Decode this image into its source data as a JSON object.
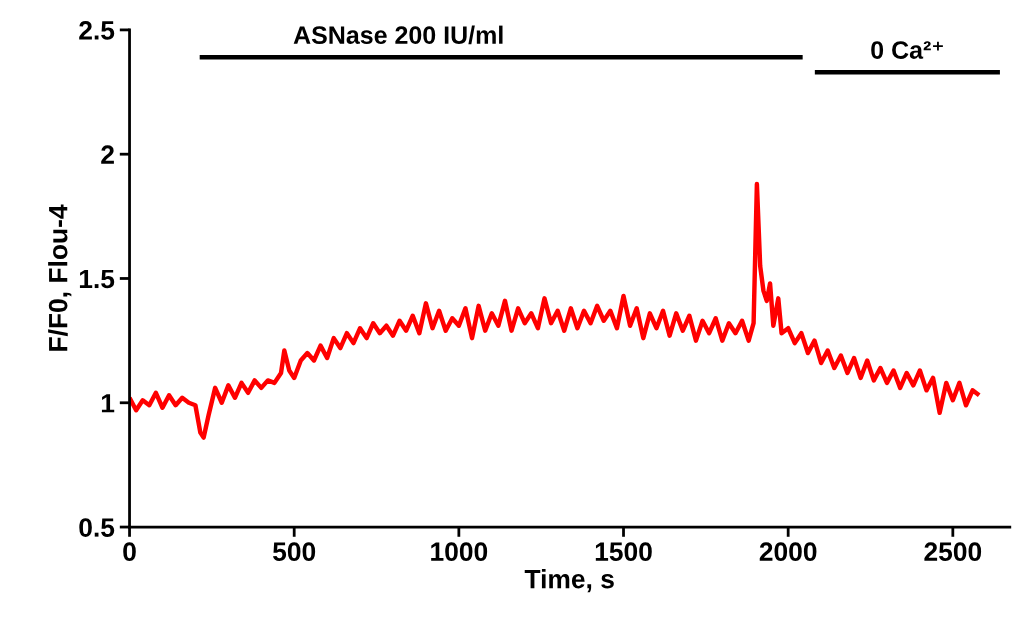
{
  "chart_data": {
    "type": "line",
    "xlabel": "Time, s",
    "ylabel": "F/F0, Flou-4",
    "xlim": [
      0,
      2673
    ],
    "xticks": [
      0,
      500,
      1000,
      1500,
      2000,
      2500
    ],
    "ylim": [
      0.5,
      2.5
    ],
    "yticks": [
      0.5,
      1,
      1.5,
      2,
      2.5
    ],
    "grid": false,
    "legend": false,
    "marker": "none",
    "line_style": "solid",
    "annotations": [
      "ASNase 200 IU/ml",
      "0 Ca²⁺"
    ],
    "series": [
      {
        "color": "#000000",
        "x": [
          213,
          2044
        ],
        "values": [
          2.39,
          2.39
        ]
      },
      {
        "color": "#000000",
        "x": [
          2081,
          2643
        ],
        "values": [
          2.33,
          2.33
        ]
      },
      {
        "color": "#ff0000",
        "x": [
          0,
          20,
          40,
          60,
          80,
          100,
          120,
          140,
          160,
          180,
          200,
          215,
          225,
          240,
          260,
          280,
          300,
          320,
          340,
          360,
          380,
          400,
          420,
          440,
          460,
          470,
          485,
          500,
          520,
          540,
          560,
          580,
          600,
          620,
          640,
          660,
          680,
          700,
          720,
          740,
          760,
          780,
          800,
          820,
          840,
          860,
          880,
          900,
          920,
          940,
          960,
          980,
          1000,
          1020,
          1040,
          1060,
          1080,
          1100,
          1120,
          1140,
          1160,
          1180,
          1200,
          1220,
          1240,
          1260,
          1280,
          1300,
          1320,
          1340,
          1360,
          1380,
          1400,
          1420,
          1440,
          1460,
          1480,
          1500,
          1520,
          1540,
          1560,
          1580,
          1600,
          1620,
          1640,
          1660,
          1680,
          1700,
          1720,
          1740,
          1760,
          1780,
          1800,
          1820,
          1840,
          1860,
          1880,
          1895,
          1905,
          1915,
          1925,
          1935,
          1945,
          1955,
          1970,
          1980,
          2000,
          2020,
          2040,
          2060,
          2080,
          2100,
          2120,
          2140,
          2160,
          2180,
          2200,
          2220,
          2240,
          2260,
          2280,
          2300,
          2320,
          2340,
          2360,
          2380,
          2400,
          2420,
          2440,
          2460,
          2480,
          2500,
          2520,
          2540,
          2560,
          2580
        ],
        "values": [
          1.02,
          0.97,
          1.01,
          0.99,
          1.04,
          0.98,
          1.03,
          0.99,
          1.02,
          1.0,
          0.99,
          0.88,
          0.86,
          0.95,
          1.06,
          1.0,
          1.07,
          1.02,
          1.08,
          1.04,
          1.09,
          1.06,
          1.09,
          1.08,
          1.12,
          1.21,
          1.13,
          1.1,
          1.17,
          1.2,
          1.17,
          1.23,
          1.18,
          1.26,
          1.22,
          1.28,
          1.24,
          1.3,
          1.26,
          1.32,
          1.28,
          1.31,
          1.27,
          1.33,
          1.29,
          1.35,
          1.28,
          1.4,
          1.3,
          1.37,
          1.29,
          1.34,
          1.31,
          1.38,
          1.26,
          1.39,
          1.29,
          1.36,
          1.31,
          1.41,
          1.29,
          1.38,
          1.32,
          1.36,
          1.3,
          1.42,
          1.32,
          1.37,
          1.29,
          1.38,
          1.3,
          1.37,
          1.32,
          1.39,
          1.33,
          1.37,
          1.3,
          1.43,
          1.31,
          1.38,
          1.26,
          1.36,
          1.3,
          1.37,
          1.27,
          1.36,
          1.29,
          1.35,
          1.25,
          1.33,
          1.28,
          1.34,
          1.25,
          1.32,
          1.28,
          1.33,
          1.25,
          1.32,
          1.88,
          1.55,
          1.45,
          1.41,
          1.48,
          1.31,
          1.42,
          1.28,
          1.3,
          1.24,
          1.28,
          1.2,
          1.25,
          1.16,
          1.21,
          1.14,
          1.19,
          1.12,
          1.18,
          1.1,
          1.17,
          1.09,
          1.14,
          1.08,
          1.13,
          1.06,
          1.12,
          1.07,
          1.13,
          1.05,
          1.1,
          0.96,
          1.08,
          1.01,
          1.08,
          0.99,
          1.05,
          1.03
        ]
      }
    ]
  }
}
